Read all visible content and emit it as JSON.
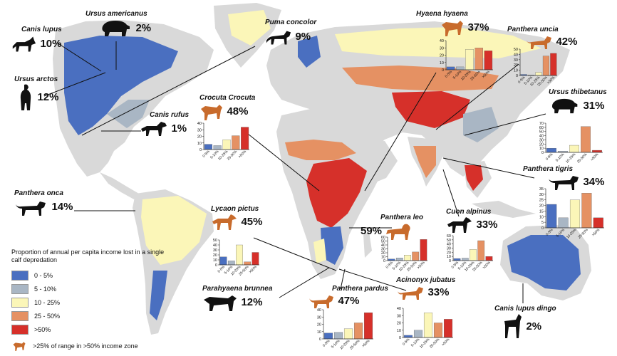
{
  "legend": {
    "title": "Proportion of annual per capita income lost in a single calf depredation",
    "items": [
      {
        "label": "0 - 5%",
        "color": "#4a6fc0"
      },
      {
        "label": "5 - 10%",
        "color": "#a9b6c4"
      },
      {
        "label": "10 - 25%",
        "color": "#fbf6b8"
      },
      {
        "label": "25 - 50%",
        "color": "#e59163"
      },
      {
        "label": ">50%",
        "color": "#d6302a"
      }
    ],
    "note": ">25% of range in >50% income zone",
    "note_icon": "carnivore-silhouette-icon"
  },
  "colors": {
    "land": "#d9d9d9",
    "highlight_animal": "#c86b2c",
    "dark_animal": "#111111"
  },
  "bin_labels": [
    "0-5%",
    "5-10%",
    "10-25%",
    "25-50%",
    ">50%"
  ],
  "species": [
    {
      "key": "canis_lupus",
      "name": "Canis lupus",
      "pct": "10%",
      "icon": "wolf-icon",
      "highlight": false
    },
    {
      "key": "ursus_americanus",
      "name": "Ursus americanus",
      "pct": "2%",
      "icon": "bear-icon",
      "highlight": false
    },
    {
      "key": "puma_concolor",
      "name": "Puma concolor",
      "pct": "9%",
      "icon": "puma-icon",
      "highlight": false
    },
    {
      "key": "ursus_arctos",
      "name": "Ursus arctos",
      "pct": "12%",
      "icon": "standing-bear-icon",
      "highlight": false
    },
    {
      "key": "canis_rufus",
      "name": "Canis rufus",
      "pct": "1%",
      "icon": "wolf-icon",
      "highlight": false
    },
    {
      "key": "crocuta_crocuta",
      "name": "Crocuta Crocuta",
      "pct": "48%",
      "icon": "hyena-icon",
      "highlight": true
    },
    {
      "key": "hyaena_hyaena",
      "name": "Hyaena hyaena",
      "pct": "37%",
      "icon": "hyena-icon",
      "highlight": true
    },
    {
      "key": "panthera_uncia",
      "name": "Panthera uncia",
      "pct": "42%",
      "icon": "snow-leopard-icon",
      "highlight": true
    },
    {
      "key": "ursus_thibetanus",
      "name": "Ursus thibetanus",
      "pct": "31%",
      "icon": "bear-icon",
      "highlight": false
    },
    {
      "key": "panthera_tigris",
      "name": "Panthera tigris",
      "pct": "34%",
      "icon": "tiger-icon",
      "highlight": false
    },
    {
      "key": "panthera_onca",
      "name": "Panthera onca",
      "pct": "14%",
      "icon": "jaguar-icon",
      "highlight": false
    },
    {
      "key": "lycaon_pictus",
      "name": "Lycaon pictus",
      "pct": "45%",
      "icon": "wild-dog-icon",
      "highlight": true
    },
    {
      "key": "panthera_leo",
      "name": "Panthera leo",
      "pct": "59%",
      "icon": "lion-icon",
      "highlight": true
    },
    {
      "key": "cuon_alpinus",
      "name": "Cuon alpinus",
      "pct": "33%",
      "icon": "dhole-icon",
      "highlight": false
    },
    {
      "key": "parahyaena_brunnea",
      "name": "Parahyaena brunnea",
      "pct": "12%",
      "icon": "hyena-icon",
      "highlight": false
    },
    {
      "key": "panthera_pardus",
      "name": "Panthera pardus",
      "pct": "47%",
      "icon": "leopard-icon",
      "highlight": true
    },
    {
      "key": "acinonyx_jubatus",
      "name": "Acinonyx jubatus",
      "pct": "33%",
      "icon": "cheetah-icon",
      "highlight": true
    },
    {
      "key": "canis_lupus_dingo",
      "name": "Canis lupus dingo",
      "pct": "2%",
      "icon": "dingo-icon",
      "highlight": false
    }
  ],
  "chart_data": [
    {
      "type": "bar",
      "species": "Crocuta Crocuta",
      "ylim": [
        0,
        40
      ],
      "yticks": [
        0,
        10,
        20,
        30,
        40
      ],
      "categories": [
        "0-5%",
        "5-10%",
        "10-25%",
        "25-50%",
        ">50%"
      ],
      "values": [
        8,
        6,
        15,
        21,
        34
      ]
    },
    {
      "type": "bar",
      "species": "Hyaena hyaena",
      "ylim": [
        0,
        40
      ],
      "yticks": [
        0,
        10,
        20,
        30,
        40
      ],
      "categories": [
        "0-5%",
        "5-10%",
        "10-25%",
        "25-50%",
        ">50%"
      ],
      "values": [
        4,
        4,
        28,
        30,
        26
      ]
    },
    {
      "type": "bar",
      "species": "Panthera uncia",
      "ylim": [
        0,
        50
      ],
      "yticks": [
        0,
        10,
        20,
        30,
        40,
        50
      ],
      "categories": [
        "0-5%",
        "5-10%",
        "10-25%",
        "25-50%",
        ">50%"
      ],
      "values": [
        2,
        1,
        6,
        37,
        42
      ]
    },
    {
      "type": "bar",
      "species": "Ursus thibetanus",
      "ylim": [
        0,
        70
      ],
      "yticks": [
        0,
        10,
        20,
        30,
        40,
        50,
        60,
        70
      ],
      "categories": [
        "0-5%",
        "5-10%",
        "10-25%",
        "25-50%",
        ">50%"
      ],
      "values": [
        10,
        3,
        17,
        62,
        5
      ]
    },
    {
      "type": "bar",
      "species": "Panthera tigris",
      "ylim": [
        0,
        35
      ],
      "yticks": [
        0,
        5,
        10,
        15,
        20,
        25,
        30,
        35
      ],
      "categories": [
        "0-5%",
        "5-10%",
        "10-25%",
        "25-50%",
        ">50%"
      ],
      "values": [
        21,
        9,
        25,
        31,
        9
      ]
    },
    {
      "type": "bar",
      "species": "Lycaon pictus",
      "ylim": [
        0,
        50
      ],
      "yticks": [
        0,
        10,
        20,
        30,
        40,
        50
      ],
      "categories": [
        "0-5%",
        "5-10%",
        "10-25%",
        "25-50%",
        ">50%"
      ],
      "values": [
        16,
        8,
        40,
        6,
        25
      ]
    },
    {
      "type": "bar",
      "species": "Panthera leo",
      "ylim": [
        0,
        60
      ],
      "yticks": [
        0,
        10,
        20,
        30,
        40,
        50,
        60
      ],
      "categories": [
        "0-5%",
        "5-10%",
        "10-25%",
        "25-50%",
        ">50%"
      ],
      "values": [
        4,
        7,
        14,
        22,
        54
      ]
    },
    {
      "type": "bar",
      "species": "Cuon alpinus",
      "ylim": [
        0,
        60
      ],
      "yticks": [
        0,
        10,
        20,
        30,
        40,
        50,
        60
      ],
      "categories": [
        "0-5%",
        "5-10%",
        "10-25%",
        "25-50%",
        ">50%"
      ],
      "values": [
        5,
        6,
        27,
        48,
        10
      ]
    },
    {
      "type": "bar",
      "species": "Panthera pardus",
      "ylim": [
        0,
        40
      ],
      "yticks": [
        0,
        10,
        20,
        30,
        40
      ],
      "categories": [
        "0-5%",
        "5-10%",
        "10-25%",
        "25-50%",
        ">50%"
      ],
      "values": [
        8,
        9,
        14,
        22,
        36
      ]
    },
    {
      "type": "bar",
      "species": "Acinonyx jubatus",
      "ylim": [
        0,
        40
      ],
      "yticks": [
        0,
        10,
        20,
        30,
        40
      ],
      "categories": [
        "0-5%",
        "5-10%",
        "10-25%",
        "25-50%",
        ">50%"
      ],
      "values": [
        3,
        10,
        34,
        20,
        25
      ]
    }
  ]
}
